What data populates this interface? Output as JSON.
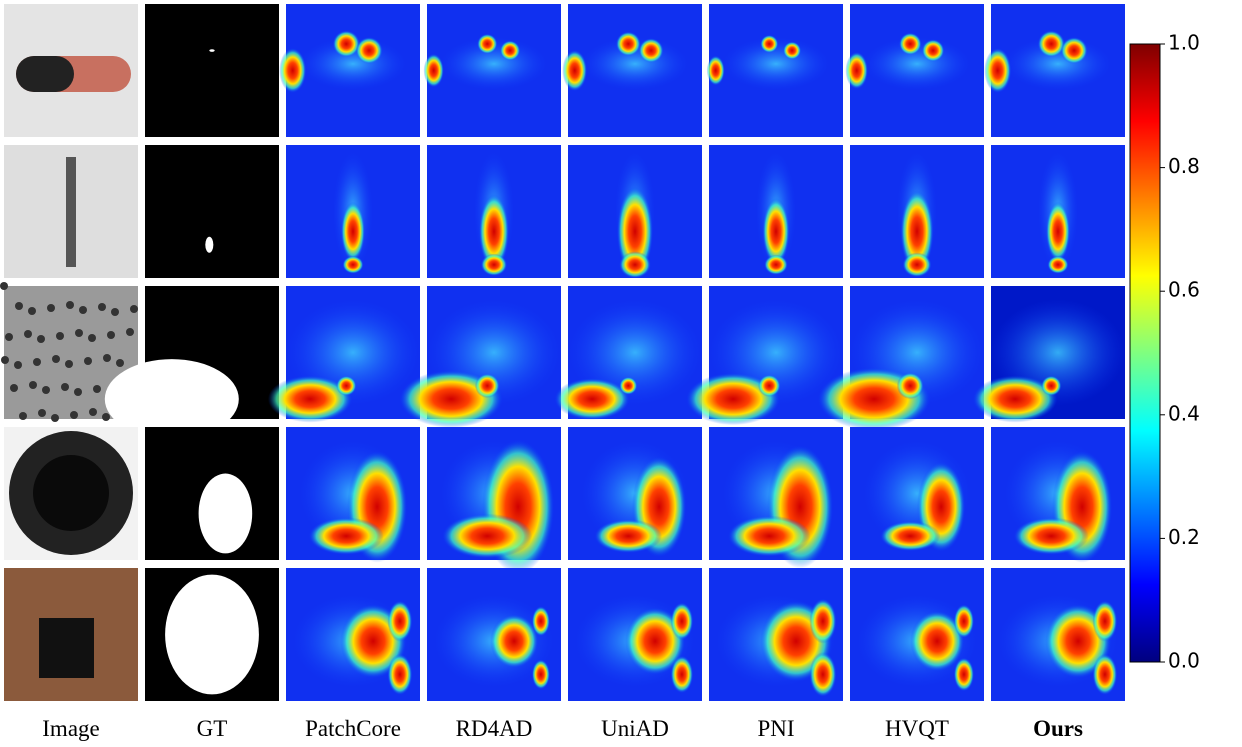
{
  "figure": {
    "columns": [
      "Image",
      "GT",
      "PatchCore",
      "RD4AD",
      "UniAD",
      "PNI",
      "HVQT",
      "Ours"
    ],
    "bold_column": 7,
    "colorbar": {
      "lim": [
        0,
        1
      ],
      "ticks": [
        {
          "value": 0,
          "label": "0.0"
        },
        {
          "value": 0.2,
          "label": "0.2"
        },
        {
          "value": 0.4,
          "label": "0.4"
        },
        {
          "value": 0.6,
          "label": "0.6"
        },
        {
          "value": 0.8,
          "label": "0.8"
        },
        {
          "value": 1,
          "label": "1.0"
        }
      ]
    }
  }
}
